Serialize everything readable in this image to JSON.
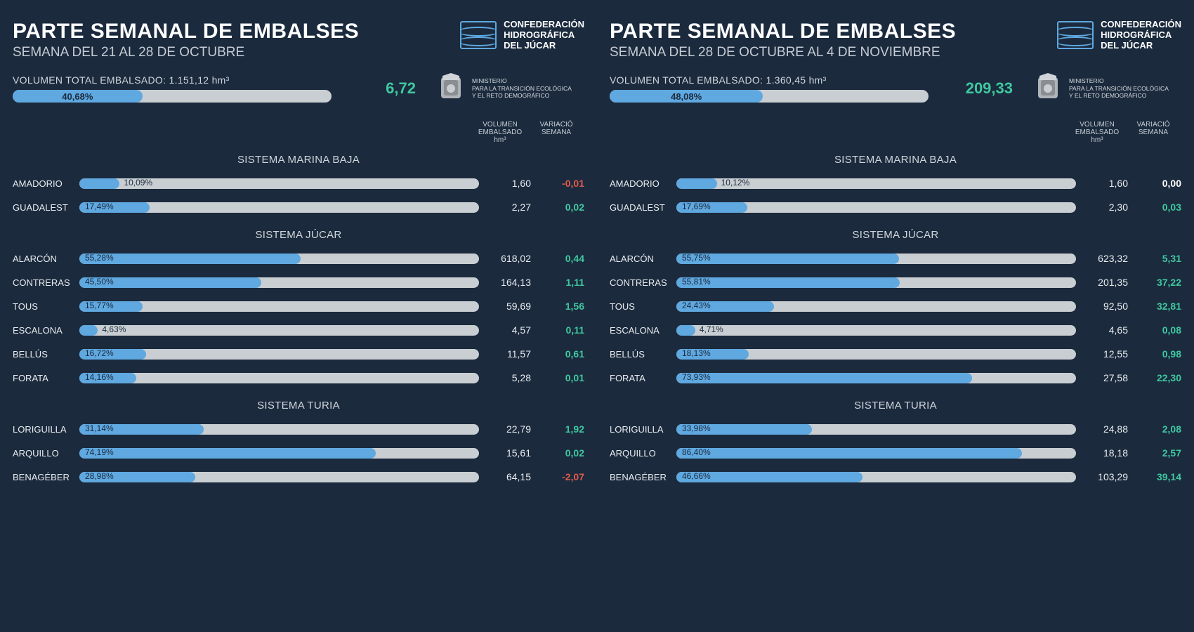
{
  "colors": {
    "background": "#1b2a3d",
    "bar_track": "#c9ced2",
    "bar_fill": "#5fa8e0",
    "text": "#e8ecef",
    "muted": "#c5ccd3",
    "positive": "#3fc8a0",
    "negative": "#e05a4a",
    "neutral": "#ffffff"
  },
  "logo": {
    "line1": "CONFEDERACIÓN",
    "line2": "HIDROGRÁFICA",
    "line3": "DEL JÚCAR"
  },
  "ministry": {
    "line1": "MINISTERIO",
    "line2": "PARA LA TRANSICIÓN ECOLÓGICA",
    "line3": "Y EL RETO DEMOGRÁFICO"
  },
  "headers": {
    "volume": "VOLUMEN EMBALSADO hm³",
    "variation": "VARIACIÓ SEMANA"
  },
  "panels": [
    {
      "title": "PARTE SEMANAL DE EMBALSES",
      "subtitle": "SEMANA DEL 21 AL 28 DE OCTUBRE",
      "total_label": "VOLUMEN TOTAL EMBALSADO: 1.151,12 hm³",
      "total_pct": 40.68,
      "total_pct_text": "40,68%",
      "total_delta": "6,72",
      "systems": [
        {
          "name": "SISTEMA MARINA BAJA",
          "rows": [
            {
              "name": "AMADORIO",
              "pct": 10.09,
              "pct_text": "10,09%",
              "vol": "1,60",
              "var": "-0,01",
              "sign": "neg"
            },
            {
              "name": "GUADALEST",
              "pct": 17.49,
              "pct_text": "17,49%",
              "vol": "2,27",
              "var": "0,02",
              "sign": "pos"
            }
          ]
        },
        {
          "name": "SISTEMA JÚCAR",
          "rows": [
            {
              "name": "ALARCÓN",
              "pct": 55.28,
              "pct_text": "55,28%",
              "vol": "618,02",
              "var": "0,44",
              "sign": "pos"
            },
            {
              "name": "CONTRERAS",
              "pct": 45.5,
              "pct_text": "45,50%",
              "vol": "164,13",
              "var": "1,11",
              "sign": "pos"
            },
            {
              "name": "TOUS",
              "pct": 15.77,
              "pct_text": "15,77%",
              "vol": "59,69",
              "var": "1,56",
              "sign": "pos"
            },
            {
              "name": "ESCALONA",
              "pct": 4.63,
              "pct_text": "4,63%",
              "vol": "4,57",
              "var": "0,11",
              "sign": "pos"
            },
            {
              "name": "BELLÚS",
              "pct": 16.72,
              "pct_text": "16,72%",
              "vol": "11,57",
              "var": "0,61",
              "sign": "pos"
            },
            {
              "name": "FORATA",
              "pct": 14.16,
              "pct_text": "14,16%",
              "vol": "5,28",
              "var": "0,01",
              "sign": "pos"
            }
          ]
        },
        {
          "name": "SISTEMA TURIA",
          "rows": [
            {
              "name": "LORIGUILLA",
              "pct": 31.14,
              "pct_text": "31,14%",
              "vol": "22,79",
              "var": "1,92",
              "sign": "pos"
            },
            {
              "name": "ARQUILLO",
              "pct": 74.19,
              "pct_text": "74,19%",
              "vol": "15,61",
              "var": "0,02",
              "sign": "pos"
            },
            {
              "name": "BENAGÉBER",
              "pct": 28.98,
              "pct_text": "28,98%",
              "vol": "64,15",
              "var": "-2,07",
              "sign": "neg"
            }
          ]
        }
      ]
    },
    {
      "title": "PARTE SEMANAL DE EMBALSES",
      "subtitle": "SEMANA DEL 28 DE OCTUBRE AL 4 DE NOVIEMBRE",
      "total_label": "VOLUMEN TOTAL EMBALSADO: 1.360,45 hm³",
      "total_pct": 48.08,
      "total_pct_text": "48,08%",
      "total_delta": "209,33",
      "systems": [
        {
          "name": "SISTEMA MARINA BAJA",
          "rows": [
            {
              "name": "AMADORIO",
              "pct": 10.12,
              "pct_text": "10,12%",
              "vol": "1,60",
              "var": "0,00",
              "sign": "zero"
            },
            {
              "name": "GUADALEST",
              "pct": 17.69,
              "pct_text": "17,69%",
              "vol": "2,30",
              "var": "0,03",
              "sign": "pos"
            }
          ]
        },
        {
          "name": "SISTEMA JÚCAR",
          "rows": [
            {
              "name": "ALARCÓN",
              "pct": 55.75,
              "pct_text": "55,75%",
              "vol": "623,32",
              "var": "5,31",
              "sign": "pos"
            },
            {
              "name": "CONTRERAS",
              "pct": 55.81,
              "pct_text": "55,81%",
              "vol": "201,35",
              "var": "37,22",
              "sign": "pos"
            },
            {
              "name": "TOUS",
              "pct": 24.43,
              "pct_text": "24,43%",
              "vol": "92,50",
              "var": "32,81",
              "sign": "pos"
            },
            {
              "name": "ESCALONA",
              "pct": 4.71,
              "pct_text": "4,71%",
              "vol": "4,65",
              "var": "0,08",
              "sign": "pos"
            },
            {
              "name": "BELLÚS",
              "pct": 18.13,
              "pct_text": "18,13%",
              "vol": "12,55",
              "var": "0,98",
              "sign": "pos"
            },
            {
              "name": "FORATA",
              "pct": 73.93,
              "pct_text": "73,93%",
              "vol": "27,58",
              "var": "22,30",
              "sign": "pos"
            }
          ]
        },
        {
          "name": "SISTEMA TURIA",
          "rows": [
            {
              "name": "LORIGUILLA",
              "pct": 33.98,
              "pct_text": "33,98%",
              "vol": "24,88",
              "var": "2,08",
              "sign": "pos"
            },
            {
              "name": "ARQUILLO",
              "pct": 86.4,
              "pct_text": "86,40%",
              "vol": "18,18",
              "var": "2,57",
              "sign": "pos"
            },
            {
              "name": "BENAGÉBER",
              "pct": 46.66,
              "pct_text": "46,66%",
              "vol": "103,29",
              "var": "39,14",
              "sign": "pos"
            }
          ]
        }
      ]
    }
  ]
}
